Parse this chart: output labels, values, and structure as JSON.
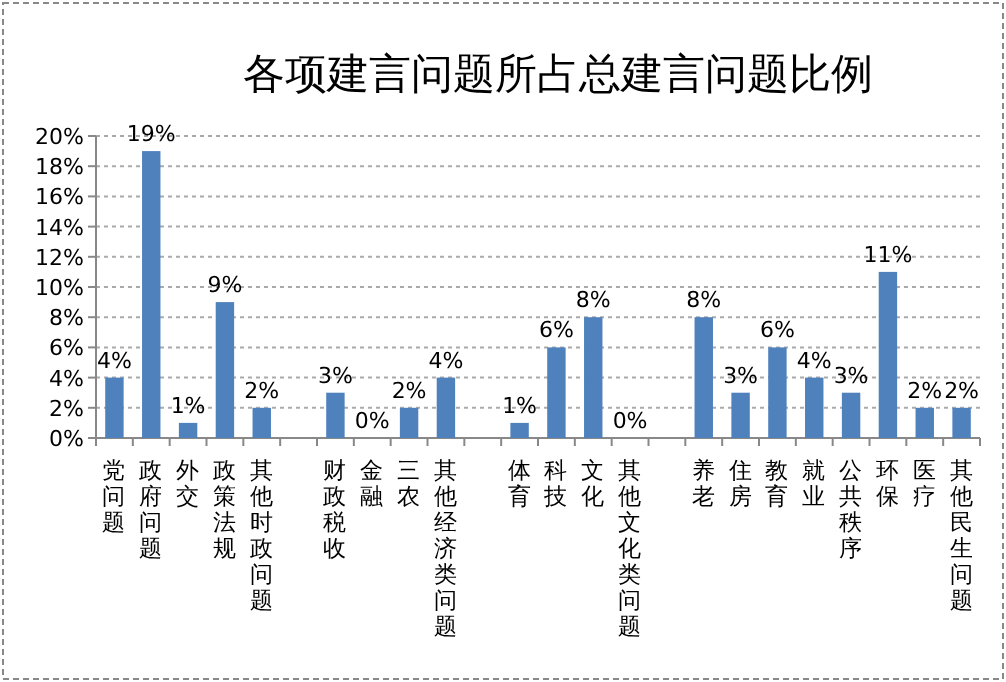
{
  "chart_data": {
    "type": "bar",
    "title": "各项建言问题所占总建言问题比例",
    "categories": [
      "党问题",
      "政府问题",
      "外交",
      "政策法规",
      "其他时政问题",
      null,
      "财政税收",
      "金融",
      "三农",
      "其他经济类问题",
      null,
      "体育",
      "科技",
      "文化",
      "其他文化类问题",
      null,
      "养老",
      "住房",
      "教育",
      "就业",
      "公共秩序",
      "环保",
      "医疗",
      "其他民生问题"
    ],
    "values": [
      4,
      19,
      1,
      9,
      2,
      null,
      3,
      0,
      2,
      4,
      null,
      1,
      6,
      8,
      0,
      null,
      8,
      3,
      6,
      4,
      3,
      11,
      2,
      2
    ],
    "value_labels": [
      "4%",
      "19%",
      "1%",
      "9%",
      "2%",
      null,
      "3%",
      "0%",
      "2%",
      "4%",
      null,
      "1%",
      "6%",
      "8%",
      "0%",
      null,
      "8%",
      "3%",
      "6%",
      "4%",
      "3%",
      "11%",
      "2%",
      "2%"
    ],
    "color": "#4f81bd",
    "ylim": [
      0,
      20
    ],
    "yticks": [
      {
        "value": 0,
        "label": "0%"
      },
      {
        "value": 2,
        "label": "2%"
      },
      {
        "value": 4,
        "label": "4%"
      },
      {
        "value": 6,
        "label": "6%"
      },
      {
        "value": 8,
        "label": "8%"
      },
      {
        "value": 10,
        "label": "10%"
      },
      {
        "value": 12,
        "label": "12%"
      },
      {
        "value": 14,
        "label": "14%"
      },
      {
        "value": 16,
        "label": "16%"
      },
      {
        "value": 18,
        "label": "18%"
      },
      {
        "value": 20,
        "label": "20%"
      }
    ],
    "grid": "y"
  }
}
